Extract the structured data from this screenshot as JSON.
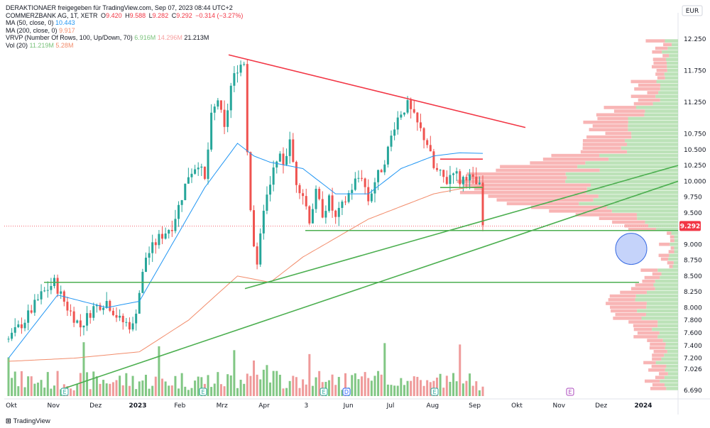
{
  "header": {
    "line1": "DERAKTIONAER freigegeben für TradingView.com, Sep 07, 2023 08:44 UTC+2",
    "symbol": "COMMERZBANK AG, 1T, XETR",
    "ohlc": {
      "o_label": "O",
      "o": "9.420",
      "h_label": "H",
      "h": "9.588",
      "l_label": "L",
      "l": "9.282",
      "c_label": "C",
      "c": "9.292",
      "chg": "−0.314 (−3.27%)"
    },
    "ma50_label": "MA (50, close, 0)",
    "ma50_value": "10.443",
    "ma200_label": "MA (200, close, 0)",
    "ma200_value": "9.917",
    "vrvp_label": "VRVP (Number Of Rows, 100, Up/Down, 70)",
    "vrvp_v1": "6.916M",
    "vrvp_v2": "14.296M",
    "vrvp_v3": "21.213M",
    "vol_label": "Vol (20)",
    "vol_v1": "11.219M",
    "vol_v2": "5.28M"
  },
  "currency": "EUR",
  "footer_brand": "TradingView",
  "colors": {
    "up": "#26a69a",
    "up_light": "#79c27a",
    "down": "#ef5350",
    "ma50": "#2196f3",
    "ma200": "#f28c6b",
    "trendline_green": "#4caf50",
    "trendline_red": "#f23645",
    "price_tag": "#f23645"
  },
  "chart_data": {
    "type": "candlestick",
    "x_axis_labels": [
      "Okt",
      "Nov",
      "Dez",
      "2023",
      "Feb",
      "Mrz",
      "Apr",
      "3",
      "Jun",
      "Jul",
      "Aug",
      "Sep",
      "Okt",
      "Nov",
      "Dez",
      "2024"
    ],
    "y_axis_labels": [
      "12.250",
      "11.750",
      "11.250",
      "10.750",
      "10.500",
      "10.250",
      "10.000",
      "9.750",
      "9.500",
      "9.000",
      "8.750",
      "8.500",
      "8.250",
      "8.000",
      "7.800",
      "7.600",
      "7.400",
      "7.200",
      "7.026",
      "6.690"
    ],
    "ylim": [
      6.69,
      12.25
    ],
    "last_price": "9.292",
    "price_path": [
      [
        0,
        7.5
      ],
      [
        5,
        7.8
      ],
      [
        10,
        8.2
      ],
      [
        14,
        8.4
      ],
      [
        18,
        8.0
      ],
      [
        22,
        7.7
      ],
      [
        26,
        8.0
      ],
      [
        30,
        8.1
      ],
      [
        34,
        7.8
      ],
      [
        38,
        7.7
      ],
      [
        42,
        8.8
      ],
      [
        46,
        9.1
      ],
      [
        50,
        9.3
      ],
      [
        52,
        9.6
      ],
      [
        55,
        10.1
      ],
      [
        58,
        10.3
      ],
      [
        60,
        10.0
      ],
      [
        62,
        11.0
      ],
      [
        64,
        11.3
      ],
      [
        66,
        10.8
      ],
      [
        68,
        11.5
      ],
      [
        70,
        11.8
      ],
      [
        72,
        11.9
      ],
      [
        73,
        10.5
      ],
      [
        74,
        9.6
      ],
      [
        75,
        9.0
      ],
      [
        76,
        8.6
      ],
      [
        78,
        9.6
      ],
      [
        80,
        9.9
      ],
      [
        82,
        10.4
      ],
      [
        84,
        10.3
      ],
      [
        86,
        10.6
      ],
      [
        88,
        10.0
      ],
      [
        90,
        9.8
      ],
      [
        92,
        9.4
      ],
      [
        94,
        9.8
      ],
      [
        96,
        9.5
      ],
      [
        98,
        9.7
      ],
      [
        100,
        9.4
      ],
      [
        102,
        9.6
      ],
      [
        104,
        9.8
      ],
      [
        106,
        10.0
      ],
      [
        108,
        10.1
      ],
      [
        110,
        9.7
      ],
      [
        112,
        10.0
      ],
      [
        114,
        10.2
      ],
      [
        116,
        10.5
      ],
      [
        118,
        10.9
      ],
      [
        120,
        11.1
      ],
      [
        122,
        11.2
      ],
      [
        124,
        11.0
      ],
      [
        126,
        10.8
      ],
      [
        128,
        10.6
      ],
      [
        130,
        10.2
      ],
      [
        132,
        10.1
      ],
      [
        134,
        10.0
      ],
      [
        136,
        10.2
      ],
      [
        138,
        10.0
      ],
      [
        140,
        10.1
      ],
      [
        142,
        10.0
      ],
      [
        144,
        9.9
      ],
      [
        145,
        9.29
      ]
    ],
    "ma50_path": [
      [
        0,
        7.2
      ],
      [
        15,
        8.2
      ],
      [
        30,
        8.0
      ],
      [
        40,
        8.1
      ],
      [
        50,
        9.0
      ],
      [
        60,
        9.9
      ],
      [
        70,
        10.6
      ],
      [
        75,
        10.4
      ],
      [
        80,
        10.3
      ],
      [
        90,
        10.2
      ],
      [
        100,
        9.8
      ],
      [
        110,
        9.8
      ],
      [
        120,
        10.2
      ],
      [
        130,
        10.4
      ],
      [
        138,
        10.45
      ],
      [
        145,
        10.44
      ]
    ],
    "ma200_path": [
      [
        0,
        7.15
      ],
      [
        20,
        7.2
      ],
      [
        40,
        7.3
      ],
      [
        55,
        7.8
      ],
      [
        70,
        8.5
      ],
      [
        80,
        8.4
      ],
      [
        90,
        8.8
      ],
      [
        100,
        9.1
      ],
      [
        110,
        9.4
      ],
      [
        120,
        9.6
      ],
      [
        130,
        9.8
      ],
      [
        140,
        9.9
      ],
      [
        145,
        9.917
      ]
    ]
  }
}
